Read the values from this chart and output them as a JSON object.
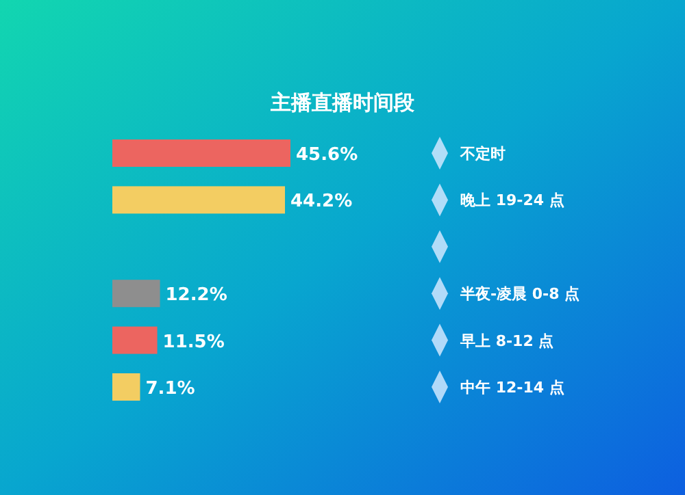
{
  "chart_data": {
    "type": "bar",
    "orientation": "horizontal",
    "title": "主播直播时间段",
    "categories": [
      "不定时",
      "晚上 19-24 点",
      null,
      "半夜-凌晨 0-8 点",
      "早上 8-12 点",
      "中午 12-14 点"
    ],
    "values": [
      45.6,
      44.2,
      null,
      12.2,
      11.5,
      7.1
    ],
    "value_labels": [
      "45.6%",
      "44.2%",
      null,
      "12.2%",
      "11.5%",
      "7.1%"
    ],
    "colors": [
      "#ec6560",
      "#f3cd62",
      null,
      "#8e8e8e",
      "#ec6560",
      "#f3cd62"
    ]
  }
}
